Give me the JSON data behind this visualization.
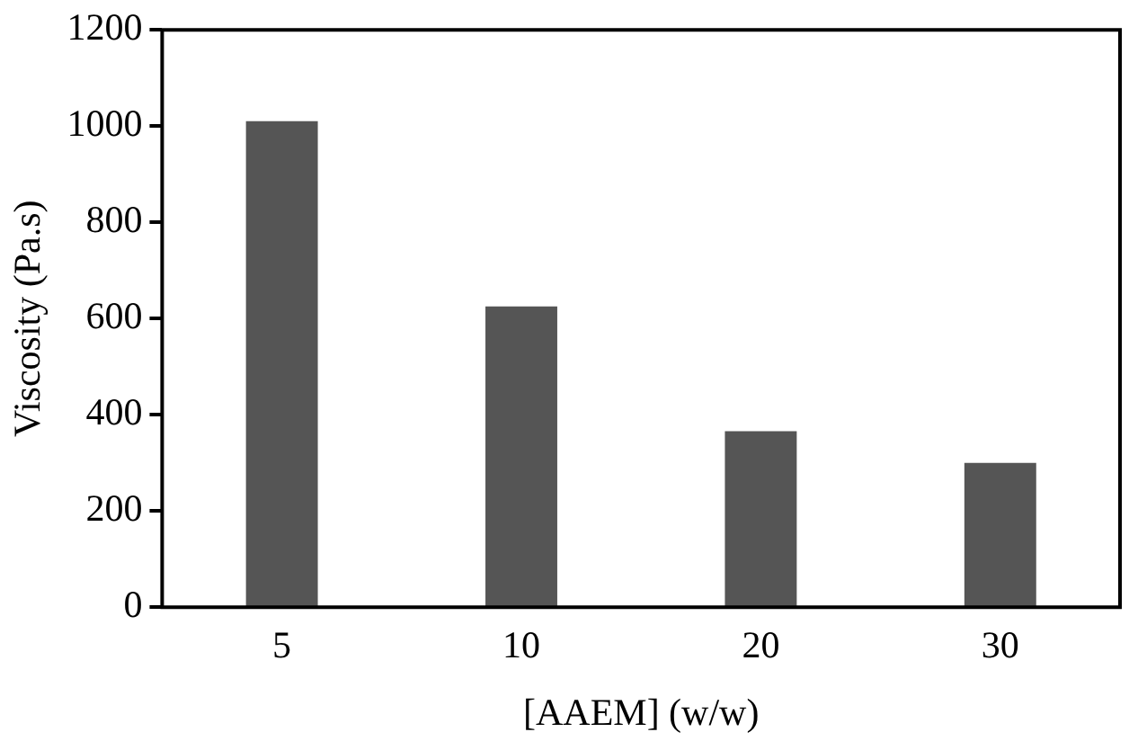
{
  "chart_data": {
    "type": "bar",
    "xlabel": "[AAEM] (w/w)",
    "ylabel": "Viscosity (Pa.s)",
    "categories": [
      "5",
      "10",
      "20",
      "30"
    ],
    "values": [
      1010,
      625,
      366,
      300
    ],
    "color": "#555555",
    "ylim": [
      0,
      1200
    ],
    "yticks": [
      0,
      200,
      400,
      600,
      800,
      1000,
      1200
    ],
    "grid": false,
    "legend": false
  }
}
